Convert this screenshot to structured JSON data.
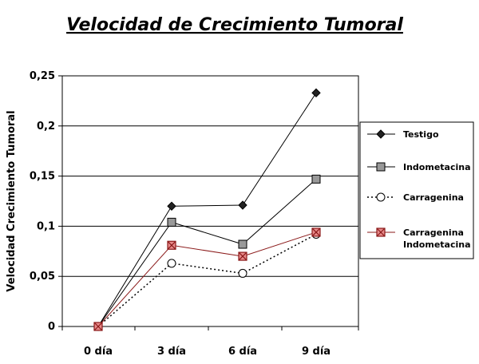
{
  "chart_data": {
    "type": "line",
    "title": "Velocidad de Crecimiento Tumoral",
    "ylabel": "Velocidad Crecimiento Tumoral",
    "xlabel": "",
    "categories": [
      "0 día",
      "3 día",
      "6 día",
      "9 día"
    ],
    "ylim": [
      0,
      0.25
    ],
    "yticks": [
      "0",
      "0,05",
      "0,1",
      "0,15",
      "0,2",
      "0,25"
    ],
    "grid": "horizontal",
    "legend_position": "right",
    "series": [
      {
        "name": "Testigo",
        "values": [
          0,
          0.12,
          0.121,
          0.233
        ],
        "marker": "diamond",
        "line": "solid",
        "color": "#000000"
      },
      {
        "name": "Indometacina",
        "values": [
          0,
          0.104,
          0.082,
          0.147
        ],
        "marker": "square",
        "line": "solid",
        "color": "#000000",
        "marker_fill": "#999999"
      },
      {
        "name": "Carragenina",
        "values": [
          0,
          0.063,
          0.053,
          0.092
        ],
        "marker": "circle",
        "line": "dotted",
        "color": "#000000",
        "marker_fill": "#ffffff"
      },
      {
        "name": "Carragenina Indometacina",
        "name_lines": [
          "Carragenina",
          "Indometacina"
        ],
        "values": [
          0,
          0.081,
          0.07,
          0.094
        ],
        "marker": "square-x",
        "line": "solid",
        "color": "#8b1a1a",
        "marker_fill": "#e88a8a"
      }
    ]
  }
}
